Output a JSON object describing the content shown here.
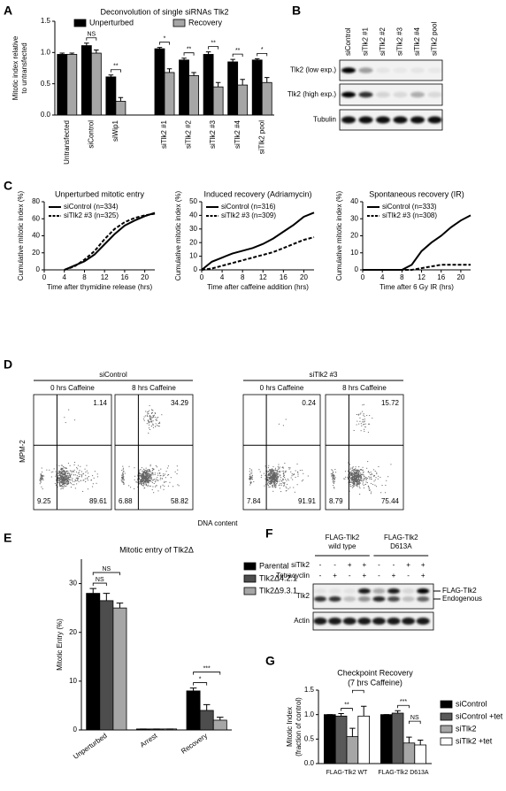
{
  "chart_data": [
    {
      "type": "bar",
      "panel": "A",
      "title": "Deconvolution of single siRNAs Tlk2",
      "ylabel": [
        "Mitotic index relative",
        "to untransfected"
      ],
      "categories": [
        "Untransfected",
        "siControl",
        "siWip1",
        null,
        "siTlk2 #1",
        "siTlk2 #2",
        "siTlk2 #3",
        "siTlk2 #4",
        "siTlk2 pool"
      ],
      "series": [
        {
          "name": "Unperturbed",
          "color": "#000000",
          "values": [
            0.97,
            1.11,
            0.61,
            null,
            1.06,
            0.88,
            0.97,
            0.85,
            0.88
          ],
          "errors": [
            0.02,
            0.04,
            0.03,
            null,
            0.02,
            0.03,
            0.04,
            0.04,
            0.02
          ]
        },
        {
          "name": "Recovery",
          "color": "#a6a6a6",
          "values": [
            0.97,
            0.99,
            0.22,
            null,
            0.68,
            0.63,
            0.45,
            0.48,
            0.52
          ],
          "errors": [
            0.02,
            0.05,
            0.06,
            null,
            0.06,
            0.05,
            0.07,
            0.09,
            0.08
          ]
        }
      ],
      "annotations": [
        {
          "label": "NS",
          "category": 1,
          "series": [
            0,
            1
          ]
        },
        {
          "label": "**",
          "category": 2,
          "series": [
            0,
            1
          ]
        },
        {
          "label": "*",
          "category": 4,
          "series": [
            0,
            1
          ]
        },
        {
          "label": "**",
          "category": 5,
          "series": [
            0,
            1
          ]
        },
        {
          "label": "**",
          "category": 6,
          "series": [
            0,
            1
          ]
        },
        {
          "label": "**",
          "category": 7,
          "series": [
            0,
            1
          ]
        },
        {
          "label": "*",
          "category": 8,
          "series": [
            0,
            1
          ]
        }
      ],
      "ylim": [
        0,
        1.5
      ],
      "yticks": [
        {
          "value": 0,
          "label": "0.0"
        },
        0.5,
        {
          "value": 1,
          "label": "1.0"
        },
        1.5
      ],
      "legend": "upper center"
    },
    {
      "type": "line",
      "panel": "C",
      "title": "Unperturbed mitotic entry",
      "xlabel": "Time after thymidine release (hrs)",
      "ylabel": "Cumulative mitotic index (%)",
      "x": [
        4,
        6,
        8,
        10,
        12,
        14,
        16,
        18,
        20,
        22
      ],
      "series": [
        {
          "name": "siControl (n=334)",
          "color": "#000000",
          "style": "solid",
          "values": [
            0,
            5,
            10,
            18,
            30,
            42,
            52,
            58,
            63,
            67
          ]
        },
        {
          "name": "siTlk2 #3 (n=325)",
          "color": "#000000",
          "style": "dashed",
          "values": [
            0,
            4,
            12,
            22,
            36,
            48,
            56,
            61,
            64,
            66
          ]
        }
      ],
      "xlim": [
        0,
        22
      ],
      "xticks": [
        0,
        4,
        8,
        12,
        16,
        20
      ],
      "ylim": [
        0,
        80
      ],
      "yticks": [
        0,
        20,
        40,
        60,
        80
      ],
      "legend": "upper left"
    },
    {
      "type": "line",
      "title": "Induced recovery (Adriamycin)",
      "xlabel": "Time after caffeine addition (hrs)",
      "ylabel": "Cumulative mitotic index (%)",
      "x": [
        0,
        2,
        4,
        6,
        8,
        10,
        12,
        14,
        16,
        18,
        20,
        22
      ],
      "series": [
        {
          "name": "siControl (n=316)",
          "color": "#000000",
          "style": "solid",
          "values": [
            0,
            6,
            9,
            12,
            14,
            16,
            19,
            23,
            28,
            33,
            39,
            42
          ]
        },
        {
          "name": "siTlk2 #3 (n=309)",
          "color": "#000000",
          "style": "dashed",
          "values": [
            0,
            1,
            3,
            5,
            7,
            9,
            11,
            13,
            16,
            19,
            22,
            24
          ]
        }
      ],
      "xlim": [
        0,
        22
      ],
      "xticks": [
        0,
        4,
        8,
        12,
        16,
        20
      ],
      "ylim": [
        0,
        50
      ],
      "yticks": [
        0,
        10,
        20,
        30,
        40,
        50
      ],
      "legend": "upper left"
    },
    {
      "type": "line",
      "title": "Spontaneous recovery (IR)",
      "xlabel": "Time after 6 Gy IR (hrs)",
      "ylabel": "Cumulative mitotic index (%)",
      "x": [
        0,
        2,
        4,
        6,
        8,
        10,
        12,
        14,
        16,
        18,
        20,
        22
      ],
      "series": [
        {
          "name": "siControl (n=333)",
          "color": "#000000",
          "style": "solid",
          "values": [
            0,
            0,
            0,
            0,
            0,
            3,
            11,
            16,
            20,
            25,
            29,
            32
          ]
        },
        {
          "name": "siTlk2 #3 (n=308)",
          "color": "#000000",
          "style": "dashed",
          "values": [
            0,
            0,
            0,
            0,
            0,
            0,
            1,
            2,
            3,
            3,
            3,
            3
          ]
        }
      ],
      "xlim": [
        0,
        22
      ],
      "xticks": [
        0,
        4,
        8,
        12,
        16,
        20
      ],
      "ylim": [
        0,
        40
      ],
      "yticks": [
        0,
        10,
        20,
        30,
        40
      ],
      "legend": "upper left"
    },
    {
      "type": "bar",
      "panel": "E",
      "title": "Mitotic entry of Tlk2Δ",
      "ylabel": "Mitotic Entry (%)",
      "categories": [
        "Unperturbed",
        "Arrest",
        "Recovery"
      ],
      "series": [
        {
          "name": "Parental",
          "color": "#000000",
          "values": [
            28,
            0.2,
            8
          ],
          "errors": [
            1,
            0,
            0.6
          ]
        },
        {
          "name": "Tlk2Δ4.2.1",
          "color": "#4d4d4d",
          "values": [
            26.5,
            0.2,
            4
          ],
          "errors": [
            1.5,
            0,
            1.2
          ]
        },
        {
          "name": "Tlk2Δ9.3.1",
          "color": "#a6a6a6",
          "values": [
            25,
            0.2,
            2
          ],
          "errors": [
            1,
            0,
            0.6
          ]
        }
      ],
      "annotations": [
        {
          "label": "NS",
          "category": 0,
          "series": [
            0,
            1
          ]
        },
        {
          "label": "NS",
          "category": 0,
          "series": [
            0,
            2
          ]
        },
        {
          "label": "*",
          "category": 2,
          "series": [
            0,
            1
          ]
        },
        {
          "label": "***",
          "category": 2,
          "series": [
            0,
            2
          ]
        }
      ],
      "ylim": [
        0,
        35
      ],
      "yticks": [
        0,
        10,
        20,
        30
      ],
      "legend": "right"
    },
    {
      "type": "bar",
      "panel": "G",
      "title": [
        "Checkpoint Recovery",
        "(7 hrs Caffeine)"
      ],
      "ylabel": [
        "Mitotic Index",
        "(fraction of control)"
      ],
      "categories": [
        "FLAG-Tlk2 WT",
        "FLAG-Tlk2 D613A"
      ],
      "series": [
        {
          "name": "siControl",
          "color": "#000000",
          "values": [
            1,
            1
          ],
          "errors": [
            0,
            0
          ]
        },
        {
          "name": "siControl +tet",
          "color": "#595959",
          "values": [
            0.97,
            1.03
          ],
          "errors": [
            0.05,
            0.05
          ]
        },
        {
          "name": "siTlk2",
          "color": "#a6a6a6",
          "values": [
            0.55,
            0.42
          ],
          "errors": [
            0.17,
            0.12
          ]
        },
        {
          "name": "siTlk2 +tet",
          "color": "#ffffff",
          "values": [
            0.97,
            0.38
          ],
          "errors": [
            0.2,
            0.1
          ]
        }
      ],
      "annotations": [
        {
          "label": "**",
          "category": 0,
          "series": [
            1,
            2
          ]
        },
        {
          "label": "*",
          "category": 0,
          "series": [
            2,
            3
          ]
        },
        {
          "label": "***",
          "category": 1,
          "series": [
            1,
            2
          ]
        },
        {
          "label": "NS",
          "category": 1,
          "series": [
            2,
            3
          ]
        }
      ],
      "ylim": [
        0,
        1.5
      ],
      "yticks": [
        {
          "value": 0,
          "label": "0.0"
        },
        0.5,
        {
          "value": 1,
          "label": "1.0"
        },
        1.5
      ],
      "legend": "right"
    }
  ],
  "blot_b": {
    "panel": "B",
    "lanes": [
      "siControl",
      "siTlk2 #1",
      "siTlk2 #2",
      "siTlk2 #3",
      "siTlk2 #4",
      "siTlk2 pool"
    ],
    "rows": [
      "Tlk2 (low exp.)",
      "Tlk2 (high exp.)",
      "Tubulin"
    ]
  },
  "flow_d": {
    "panel": "D",
    "ylabel": "MPM-2",
    "xlabel": "DNA content",
    "groups": [
      {
        "label": "siControl",
        "plots": [
          {
            "title": "0 hrs Caffeine",
            "upper_right": 1.14,
            "lower_left": 9.25,
            "lower_right": 89.61
          },
          {
            "title": "8 hrs Caffeine",
            "upper_right": 34.29,
            "lower_left": 6.88,
            "lower_right": 58.82
          }
        ]
      },
      {
        "label": "siTlk2 #3",
        "plots": [
          {
            "title": "0 hrs Caffeine",
            "upper_right": 0.24,
            "lower_left": 7.84,
            "lower_right": 91.91
          },
          {
            "title": "8 hrs Caffeine",
            "upper_right": 15.72,
            "lower_left": 8.79,
            "lower_right": 75.44
          }
        ]
      }
    ]
  },
  "blot_f": {
    "panel": "F",
    "groups": [
      [
        "FLAG-Tlk2",
        "wild type"
      ],
      [
        "FLAG-Tlk2",
        "D613A"
      ]
    ],
    "conditions": [
      {
        "label": "siTlk2",
        "signs": [
          "-",
          "-",
          "+",
          "+",
          "-",
          "-",
          "+",
          "+"
        ]
      },
      {
        "label": "Tetracyclin",
        "signs": [
          "-",
          "+",
          "-",
          "+",
          "-",
          "+",
          "-",
          "+"
        ]
      }
    ],
    "rows": [
      "Tlk2",
      "Actin"
    ],
    "band_labels": [
      "FLAG-Tlk2",
      "Endogenous"
    ]
  }
}
